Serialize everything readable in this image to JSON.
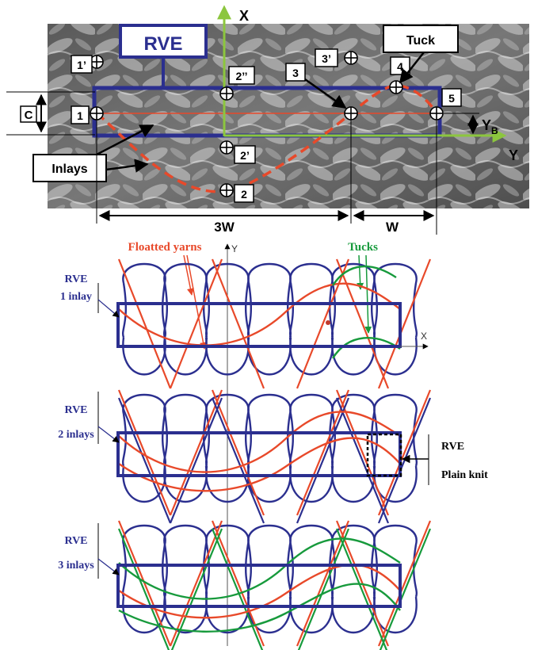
{
  "photo": {
    "rve_label": "RVE",
    "tuck_label": "Tuck",
    "inlays_label": "Inlays",
    "axis_x": "X",
    "axis_y": "Y",
    "dim_c": "C",
    "dim_3w": "3W",
    "dim_w": "W",
    "yb_main": "Y",
    "yb_sub": "B",
    "points": {
      "p1": "1",
      "p1p": "1’",
      "p2": "2",
      "p2p": "2’",
      "p2pp": "2’’",
      "p3": "3",
      "p3p": "3’",
      "p4": "4",
      "p5": "5"
    }
  },
  "schematic": {
    "floatted_label": "Floatted yarns",
    "tucks_label": "Tucks",
    "axis_x": "X",
    "axis_y": "Y",
    "panel1": {
      "line1": "RVE",
      "line2": "1 inlay"
    },
    "panel2": {
      "line1": "RVE",
      "line2": "2 inlays"
    },
    "panel3": {
      "line1": "RVE",
      "line2": "3 inlays"
    },
    "plain_knit": {
      "line1": "RVE",
      "line2": "Plain knit"
    }
  },
  "colors": {
    "navy": "#2b2f8f",
    "red": "#e8492a",
    "green": "#179a3c",
    "axis_green": "#8cc63e",
    "callout": "#ffffff"
  }
}
